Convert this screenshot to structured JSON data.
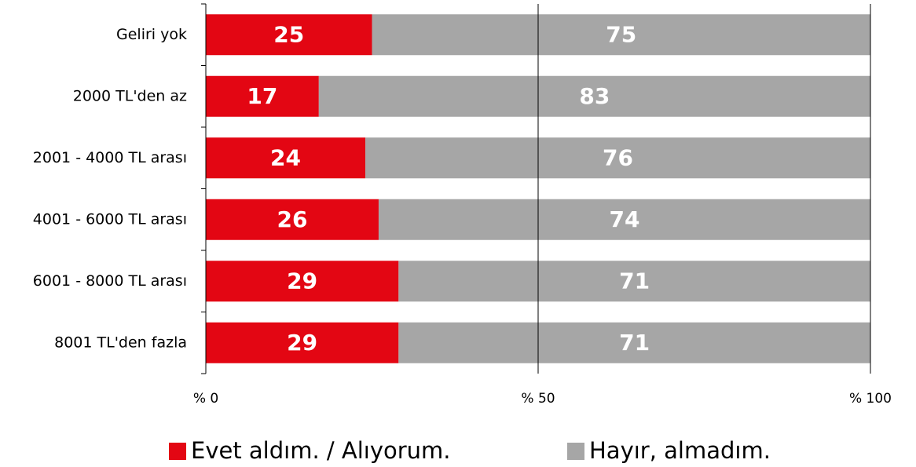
{
  "chart_data": {
    "type": "stacked_barh",
    "categories": [
      "Geliri yok",
      "2000 TL'den az",
      "2001 - 4000 TL arası",
      "4001 - 6000 TL arası",
      "6001 - 8000 TL arası",
      "8001 TL'den fazla"
    ],
    "series": [
      {
        "name": "Evet aldım. / Alıyorum.",
        "color": "#e30613",
        "values": [
          25,
          17,
          24,
          26,
          29,
          29
        ]
      },
      {
        "name": "Hayır, almadım.",
        "color": "#a6a6a6",
        "values": [
          75,
          83,
          76,
          74,
          71,
          71
        ]
      }
    ],
    "xlim": [
      0,
      100
    ],
    "xticks": [
      {
        "value": 0,
        "label": "% 0"
      },
      {
        "value": 50,
        "label": "% 50"
      },
      {
        "value": 100,
        "label": "% 100"
      }
    ],
    "grid": true
  }
}
